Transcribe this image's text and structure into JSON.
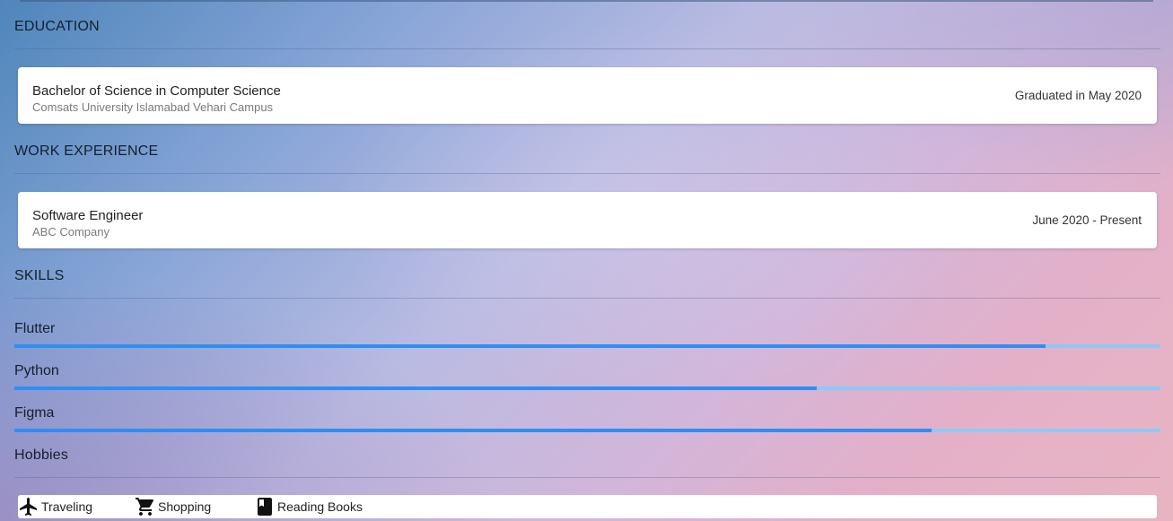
{
  "education": {
    "heading": "EDUCATION",
    "items": [
      {
        "title": "Bachelor of Science in Computer Science",
        "subtitle": "Comsats University Islamabad Vehari Campus",
        "date": "Graduated in May 2020"
      }
    ]
  },
  "work": {
    "heading": "WORK EXPERIENCE",
    "items": [
      {
        "title": "Software Engineer",
        "subtitle": "ABC Company",
        "date": "June 2020 - Present"
      }
    ]
  },
  "skills": {
    "heading": "SKILLS",
    "items": [
      {
        "name": "Flutter",
        "level": 0.9
      },
      {
        "name": "Python",
        "level": 0.7
      },
      {
        "name": "Figma",
        "level": 0.8
      }
    ]
  },
  "hobbies": {
    "heading": "Hobbies",
    "items": [
      {
        "label": "Traveling",
        "icon": "airplane-icon"
      },
      {
        "label": "Shopping",
        "icon": "shopping-cart-icon"
      },
      {
        "label": "Reading Books",
        "icon": "book-icon"
      }
    ]
  },
  "colors": {
    "progress_fill": "#2f8ef2",
    "progress_track": "#8ec8f5",
    "card_bg": "#ffffff"
  }
}
